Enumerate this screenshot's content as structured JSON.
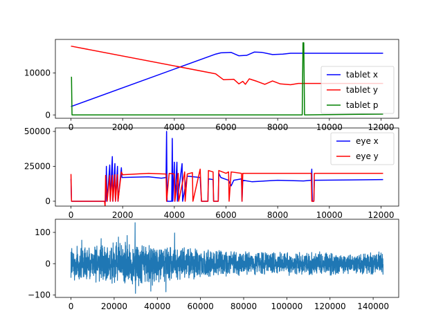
{
  "chart_data": [
    {
      "type": "line",
      "xlim": [
        -604,
        12684
      ],
      "ylim": [
        -800,
        18000
      ],
      "xticks": [
        0,
        2000,
        4000,
        6000,
        8000,
        10000,
        12000
      ],
      "yticks": [
        0,
        10000
      ],
      "legend_position": "lower-right",
      "series": [
        {
          "name": "tablet x",
          "color": "#0000ff",
          "points": [
            [
              0,
              2000
            ],
            [
              5600,
              14500
            ],
            [
              5800,
              14800
            ],
            [
              6200,
              14900
            ],
            [
              6500,
              14100
            ],
            [
              6800,
              14200
            ],
            [
              7100,
              15000
            ],
            [
              7400,
              14900
            ],
            [
              7800,
              14400
            ],
            [
              8200,
              14500
            ],
            [
              8500,
              14700
            ],
            [
              9000,
              14700
            ],
            [
              12080,
              14700
            ]
          ]
        },
        {
          "name": "tablet y",
          "color": "#ff0000",
          "points": [
            [
              0,
              16400
            ],
            [
              5600,
              9800
            ],
            [
              5900,
              8400
            ],
            [
              6300,
              8500
            ],
            [
              6500,
              7400
            ],
            [
              6650,
              8000
            ],
            [
              6750,
              7300
            ],
            [
              6900,
              8600
            ],
            [
              7200,
              8000
            ],
            [
              7500,
              7300
            ],
            [
              7800,
              8100
            ],
            [
              8100,
              7400
            ],
            [
              8500,
              7200
            ],
            [
              8800,
              7500
            ],
            [
              9000,
              7500
            ],
            [
              12080,
              7500
            ]
          ]
        },
        {
          "name": "tablet p",
          "color": "#008000",
          "points": [
            [
              0,
              9000
            ],
            [
              20,
              9000
            ],
            [
              40,
              0
            ],
            [
              8950,
              0
            ],
            [
              8980,
              17200
            ],
            [
              9010,
              17200
            ],
            [
              9040,
              0
            ],
            [
              12080,
              200
            ]
          ]
        }
      ]
    },
    {
      "type": "line",
      "xlim": [
        -604,
        12684
      ],
      "ylim": [
        -3500,
        52500
      ],
      "xticks": [
        0,
        2000,
        4000,
        6000,
        8000,
        10000,
        12000
      ],
      "yticks": [
        0,
        25000,
        50000
      ],
      "legend_position": "upper-right",
      "series": [
        {
          "name": "eye x",
          "color": "#0000ff",
          "points": [
            [
              0,
              16000
            ],
            [
              20,
              0
            ],
            [
              1350,
              0
            ],
            [
              1370,
              25000
            ],
            [
              1400,
              0
            ],
            [
              1500,
              26000
            ],
            [
              1520,
              0
            ],
            [
              1600,
              32000
            ],
            [
              1620,
              0
            ],
            [
              1700,
              27000
            ],
            [
              1720,
              0
            ],
            [
              1800,
              25000
            ],
            [
              1820,
              0
            ],
            [
              1950,
              24000
            ],
            [
              1970,
              17000
            ],
            [
              3000,
              17500
            ],
            [
              3500,
              16500
            ],
            [
              3680,
              17000
            ],
            [
              3700,
              50000
            ],
            [
              3720,
              0
            ],
            [
              3900,
              0
            ],
            [
              3920,
              45000
            ],
            [
              3940,
              0
            ],
            [
              4000,
              28000
            ],
            [
              4020,
              0
            ],
            [
              4100,
              28000
            ],
            [
              4120,
              0
            ],
            [
              4300,
              27000
            ],
            [
              4320,
              0
            ],
            [
              4500,
              18000
            ],
            [
              5000,
              17000
            ],
            [
              5050,
              0
            ],
            [
              5300,
              0
            ],
            [
              5320,
              16000
            ],
            [
              5500,
              15500
            ],
            [
              5520,
              0
            ],
            [
              5700,
              0
            ],
            [
              5720,
              20000
            ],
            [
              5800,
              17000
            ],
            [
              6100,
              15000
            ],
            [
              6200,
              11000
            ],
            [
              6300,
              15000
            ],
            [
              6600,
              16000
            ],
            [
              6620,
              0
            ],
            [
              6650,
              15000
            ],
            [
              7000,
              14000
            ],
            [
              8000,
              15000
            ],
            [
              9000,
              14500
            ],
            [
              9300,
              15000
            ],
            [
              9320,
              23000
            ],
            [
              9340,
              0
            ],
            [
              9400,
              0
            ],
            [
              9420,
              15000
            ],
            [
              12080,
              15500
            ]
          ]
        },
        {
          "name": "eye y",
          "color": "#ff0000",
          "points": [
            [
              0,
              19500
            ],
            [
              20,
              0
            ],
            [
              1300,
              0
            ],
            [
              1320,
              -4000
            ],
            [
              1340,
              18500
            ],
            [
              1400,
              0
            ],
            [
              1500,
              18500
            ],
            [
              1520,
              0
            ],
            [
              1600,
              18500
            ],
            [
              1620,
              0
            ],
            [
              1700,
              19000
            ],
            [
              1720,
              0
            ],
            [
              1800,
              19000
            ],
            [
              1820,
              0
            ],
            [
              1950,
              21000
            ],
            [
              2000,
              19000
            ],
            [
              3000,
              20000
            ],
            [
              3680,
              19500
            ],
            [
              3700,
              0
            ],
            [
              3800,
              20000
            ],
            [
              4000,
              19500
            ],
            [
              4020,
              0
            ],
            [
              4150,
              20000
            ],
            [
              4170,
              0
            ],
            [
              4400,
              21000
            ],
            [
              4420,
              0
            ],
            [
              4500,
              19500
            ],
            [
              4700,
              20500
            ],
            [
              4720,
              0
            ],
            [
              5000,
              23000
            ],
            [
              5050,
              0
            ],
            [
              5300,
              0
            ],
            [
              5320,
              22000
            ],
            [
              5500,
              21000
            ],
            [
              5520,
              0
            ],
            [
              5700,
              0
            ],
            [
              5720,
              22000
            ],
            [
              6000,
              20000
            ],
            [
              6100,
              21000
            ],
            [
              6120,
              0
            ],
            [
              6200,
              21000
            ],
            [
              6600,
              20000
            ],
            [
              6620,
              0
            ],
            [
              6650,
              20000
            ],
            [
              8000,
              20000
            ],
            [
              9300,
              20000
            ],
            [
              9320,
              0
            ],
            [
              9400,
              0
            ],
            [
              9420,
              20000
            ],
            [
              12080,
              20000
            ]
          ]
        }
      ]
    },
    {
      "type": "line",
      "xlim": [
        -7230,
        151830
      ],
      "ylim": [
        -108,
        142
      ],
      "xticks": [
        0,
        20000,
        40000,
        60000,
        80000,
        100000,
        120000,
        140000
      ],
      "yticks": [
        -100,
        0,
        100
      ],
      "series": [
        {
          "color": "#1f77b4",
          "noise": true,
          "length": 144600,
          "spikes": [
            [
              29700,
              131
            ],
            [
              29900,
              -95
            ],
            [
              14000,
              80
            ],
            [
              22000,
              85
            ],
            [
              44000,
              -90
            ],
            [
              48000,
              98
            ],
            [
              5000,
              75
            ],
            [
              26000,
              90
            ],
            [
              37000,
              -88
            ]
          ]
        }
      ]
    }
  ]
}
